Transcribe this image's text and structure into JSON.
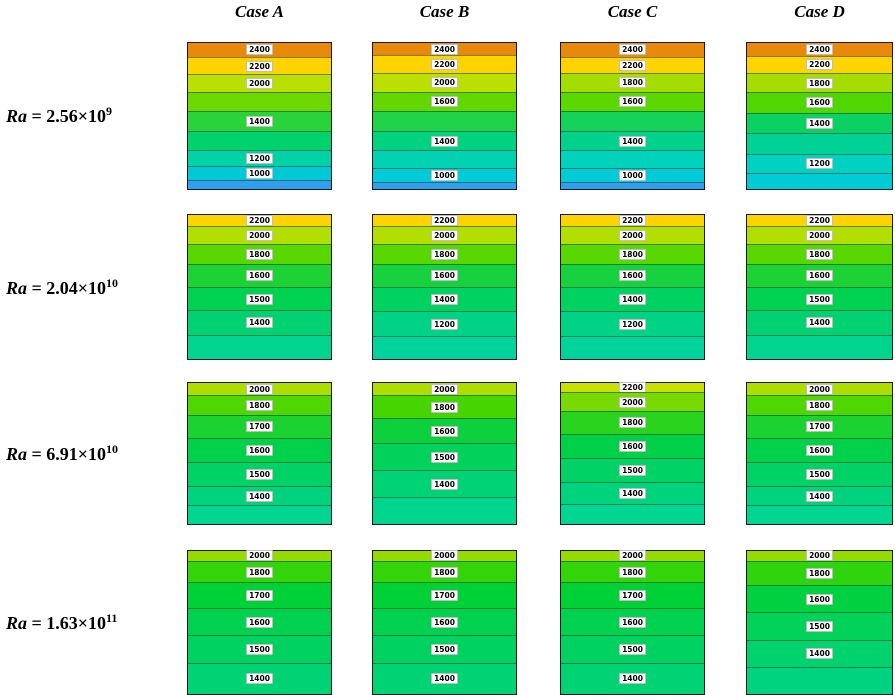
{
  "figure": {
    "columns": [
      "Case A",
      "Case B",
      "Case C",
      "Case D"
    ],
    "rows": [
      {
        "ra": "Ra",
        "eq": " = 2.56×10",
        "exp": "9"
      },
      {
        "ra": "Ra",
        "eq": " = 2.04×10",
        "exp": "10"
      },
      {
        "ra": "Ra",
        "eq": " = 6.91×10",
        "exp": "10"
      },
      {
        "ra": "Ra",
        "eq": " = 1.63×10",
        "exp": "11"
      }
    ]
  },
  "chart_data": {
    "type": "heatmap",
    "subtype": "filled-temperature-contour-grid",
    "title": "",
    "columns": [
      "Case A",
      "Case B",
      "Case C",
      "Case D"
    ],
    "row_labels": [
      "Ra = 2.56×10^9",
      "Ra = 2.04×10^10",
      "Ra = 6.91×10^10",
      "Ra = 1.63×10^11"
    ],
    "legend": "none",
    "notes": "4×4 grid of filled horizontal-band temperature contour maps; hot (orange/yellow) at top, cooler (green/cyan/blue) at bottom; white boxed numbers are contour level labels",
    "panels": [
      [
        {
          "bands": [
            {
              "color": "#E8890B",
              "height_pct": 10,
              "label": "2400"
            },
            {
              "color": "#FFD300",
              "height_pct": 12,
              "label": "2200"
            },
            {
              "color": "#BADF00",
              "height_pct": 12,
              "label": "2000"
            },
            {
              "color": "#6CD800",
              "height_pct": 13,
              "label": ""
            },
            {
              "color": "#2BD33B",
              "height_pct": 14,
              "label": "1400"
            },
            {
              "color": "#00D26E",
              "height_pct": 13,
              "label": ""
            },
            {
              "color": "#00D2A6",
              "height_pct": 11,
              "label": "1200"
            },
            {
              "color": "#00C9D6",
              "height_pct": 9,
              "label": "1000"
            },
            {
              "color": "#2F9FF0",
              "height_pct": 6,
              "label": ""
            }
          ]
        },
        {
          "bands": [
            {
              "color": "#E8890B",
              "height_pct": 9,
              "label": "2400"
            },
            {
              "color": "#FFD300",
              "height_pct": 12,
              "label": "2200"
            },
            {
              "color": "#BADF00",
              "height_pct": 13,
              "label": "2000"
            },
            {
              "color": "#62D700",
              "height_pct": 13,
              "label": "1600"
            },
            {
              "color": "#1ED24A",
              "height_pct": 14,
              "label": ""
            },
            {
              "color": "#00D280",
              "height_pct": 13,
              "label": "1400"
            },
            {
              "color": "#00D2B2",
              "height_pct": 12,
              "label": ""
            },
            {
              "color": "#00CBD6",
              "height_pct": 10,
              "label": "1000"
            },
            {
              "color": "#2F9FF0",
              "height_pct": 4,
              "label": ""
            }
          ]
        },
        {
          "bands": [
            {
              "color": "#E8890B",
              "height_pct": 10,
              "label": "2400"
            },
            {
              "color": "#FFD300",
              "height_pct": 11,
              "label": "2200"
            },
            {
              "color": "#A6DD00",
              "height_pct": 13,
              "label": "1800"
            },
            {
              "color": "#5CD700",
              "height_pct": 13,
              "label": "1600"
            },
            {
              "color": "#14D25A",
              "height_pct": 14,
              "label": ""
            },
            {
              "color": "#00D28C",
              "height_pct": 13,
              "label": "1400"
            },
            {
              "color": "#00D2BC",
              "height_pct": 12,
              "label": ""
            },
            {
              "color": "#00CBD6",
              "height_pct": 10,
              "label": "1000"
            },
            {
              "color": "#2F9FF0",
              "height_pct": 4,
              "label": ""
            }
          ]
        },
        {
          "bands": [
            {
              "color": "#E8890B",
              "height_pct": 9,
              "label": "2400"
            },
            {
              "color": "#FFD300",
              "height_pct": 12,
              "label": "2200"
            },
            {
              "color": "#A6DD00",
              "height_pct": 13,
              "label": "1800"
            },
            {
              "color": "#50D600",
              "height_pct": 14,
              "label": "1600"
            },
            {
              "color": "#0BD162",
              "height_pct": 14,
              "label": "1400"
            },
            {
              "color": "#00D296",
              "height_pct": 14,
              "label": ""
            },
            {
              "color": "#00D2C2",
              "height_pct": 13,
              "label": "1200"
            },
            {
              "color": "#00CBD6",
              "height_pct": 11,
              "label": ""
            }
          ]
        }
      ],
      [
        {
          "bands": [
            {
              "color": "#FFD300",
              "height_pct": 8,
              "label": "2200"
            },
            {
              "color": "#B2DE00",
              "height_pct": 12,
              "label": "2000"
            },
            {
              "color": "#58D700",
              "height_pct": 14,
              "label": "1800"
            },
            {
              "color": "#1CD234",
              "height_pct": 16,
              "label": "1600"
            },
            {
              "color": "#00D150",
              "height_pct": 16,
              "label": "1500"
            },
            {
              "color": "#00D272",
              "height_pct": 17,
              "label": "1400"
            },
            {
              "color": "#00D48E",
              "height_pct": 17,
              "label": ""
            }
          ]
        },
        {
          "bands": [
            {
              "color": "#FFD300",
              "height_pct": 8,
              "label": "2200"
            },
            {
              "color": "#B2DE00",
              "height_pct": 12,
              "label": "2000"
            },
            {
              "color": "#58D700",
              "height_pct": 14,
              "label": "1800"
            },
            {
              "color": "#16D23E",
              "height_pct": 16,
              "label": "1600"
            },
            {
              "color": "#00D262",
              "height_pct": 17,
              "label": "1400"
            },
            {
              "color": "#00D286",
              "height_pct": 17,
              "label": "1200"
            },
            {
              "color": "#00D49C",
              "height_pct": 16,
              "label": ""
            }
          ]
        },
        {
          "bands": [
            {
              "color": "#FFD300",
              "height_pct": 8,
              "label": "2200"
            },
            {
              "color": "#B2DE00",
              "height_pct": 12,
              "label": "2000"
            },
            {
              "color": "#58D700",
              "height_pct": 14,
              "label": "1800"
            },
            {
              "color": "#16D23E",
              "height_pct": 16,
              "label": "1600"
            },
            {
              "color": "#00D262",
              "height_pct": 17,
              "label": "1400"
            },
            {
              "color": "#00D286",
              "height_pct": 17,
              "label": "1200"
            },
            {
              "color": "#00D49C",
              "height_pct": 16,
              "label": ""
            }
          ]
        },
        {
          "bands": [
            {
              "color": "#FFD300",
              "height_pct": 8,
              "label": "2200"
            },
            {
              "color": "#B2DE00",
              "height_pct": 12,
              "label": "2000"
            },
            {
              "color": "#58D700",
              "height_pct": 14,
              "label": "1800"
            },
            {
              "color": "#1CD234",
              "height_pct": 16,
              "label": "1600"
            },
            {
              "color": "#00D150",
              "height_pct": 16,
              "label": "1500"
            },
            {
              "color": "#00D272",
              "height_pct": 17,
              "label": "1400"
            },
            {
              "color": "#00D48E",
              "height_pct": 17,
              "label": ""
            }
          ]
        }
      ],
      [
        {
          "bands": [
            {
              "color": "#AEDD00",
              "height_pct": 9,
              "label": "2000"
            },
            {
              "color": "#50D600",
              "height_pct": 14,
              "label": "1800"
            },
            {
              "color": "#1AD230",
              "height_pct": 16,
              "label": "1700"
            },
            {
              "color": "#00D14A",
              "height_pct": 17,
              "label": "1600"
            },
            {
              "color": "#00D266",
              "height_pct": 17,
              "label": "1500"
            },
            {
              "color": "#00D37E",
              "height_pct": 14,
              "label": "1400"
            },
            {
              "color": "#00D592",
              "height_pct": 13,
              "label": ""
            }
          ]
        },
        {
          "bands": [
            {
              "color": "#AEDD00",
              "height_pct": 9,
              "label": "2000"
            },
            {
              "color": "#46D500",
              "height_pct": 16,
              "label": "1800"
            },
            {
              "color": "#0CD13C",
              "height_pct": 18,
              "label": "1600"
            },
            {
              "color": "#00D25C",
              "height_pct": 19,
              "label": "1500"
            },
            {
              "color": "#00D276",
              "height_pct": 19,
              "label": "1400"
            },
            {
              "color": "#00D58E",
              "height_pct": 19,
              "label": ""
            }
          ]
        },
        {
          "bands": [
            {
              "color": "#C9E100",
              "height_pct": 7,
              "label": "2200"
            },
            {
              "color": "#78DA00",
              "height_pct": 13,
              "label": "2000"
            },
            {
              "color": "#2AD31E",
              "height_pct": 16,
              "label": "1800"
            },
            {
              "color": "#00D148",
              "height_pct": 17,
              "label": "1600"
            },
            {
              "color": "#00D266",
              "height_pct": 17,
              "label": "1500"
            },
            {
              "color": "#00D37E",
              "height_pct": 16,
              "label": "1400"
            },
            {
              "color": "#00D592",
              "height_pct": 14,
              "label": ""
            }
          ]
        },
        {
          "bands": [
            {
              "color": "#AEDD00",
              "height_pct": 9,
              "label": "2000"
            },
            {
              "color": "#50D600",
              "height_pct": 14,
              "label": "1800"
            },
            {
              "color": "#1AD230",
              "height_pct": 16,
              "label": "1700"
            },
            {
              "color": "#00D14A",
              "height_pct": 17,
              "label": "1600"
            },
            {
              "color": "#00D266",
              "height_pct": 17,
              "label": "1500"
            },
            {
              "color": "#00D37E",
              "height_pct": 14,
              "label": "1400"
            },
            {
              "color": "#00D592",
              "height_pct": 13,
              "label": ""
            }
          ]
        }
      ],
      [
        {
          "bands": [
            {
              "color": "#96DB00",
              "height_pct": 7,
              "label": "2000"
            },
            {
              "color": "#34D40A",
              "height_pct": 15,
              "label": "1800"
            },
            {
              "color": "#00D136",
              "height_pct": 18,
              "label": "1700"
            },
            {
              "color": "#00D250",
              "height_pct": 19,
              "label": "1600"
            },
            {
              "color": "#00D262",
              "height_pct": 19,
              "label": "1500"
            },
            {
              "color": "#00D374",
              "height_pct": 22,
              "label": "1400"
            }
          ]
        },
        {
          "bands": [
            {
              "color": "#96DB00",
              "height_pct": 7,
              "label": "2000"
            },
            {
              "color": "#34D40A",
              "height_pct": 15,
              "label": "1800"
            },
            {
              "color": "#00D136",
              "height_pct": 18,
              "label": "1700"
            },
            {
              "color": "#00D250",
              "height_pct": 19,
              "label": "1600"
            },
            {
              "color": "#00D262",
              "height_pct": 19,
              "label": "1500"
            },
            {
              "color": "#00D374",
              "height_pct": 22,
              "label": "1400"
            }
          ]
        },
        {
          "bands": [
            {
              "color": "#96DB00",
              "height_pct": 7,
              "label": "2000"
            },
            {
              "color": "#34D40A",
              "height_pct": 15,
              "label": "1800"
            },
            {
              "color": "#00D136",
              "height_pct": 18,
              "label": "1700"
            },
            {
              "color": "#00D250",
              "height_pct": 19,
              "label": "1600"
            },
            {
              "color": "#00D262",
              "height_pct": 19,
              "label": "1500"
            },
            {
              "color": "#00D374",
              "height_pct": 22,
              "label": "1400"
            }
          ]
        },
        {
          "bands": [
            {
              "color": "#96DB00",
              "height_pct": 7,
              "label": "2000"
            },
            {
              "color": "#2ED40E",
              "height_pct": 17,
              "label": "1800"
            },
            {
              "color": "#00D140",
              "height_pct": 19,
              "label": "1600"
            },
            {
              "color": "#00D25A",
              "height_pct": 19,
              "label": "1500"
            },
            {
              "color": "#00D26E",
              "height_pct": 19,
              "label": "1400"
            },
            {
              "color": "#00D380",
              "height_pct": 19,
              "label": ""
            }
          ]
        }
      ]
    ]
  }
}
